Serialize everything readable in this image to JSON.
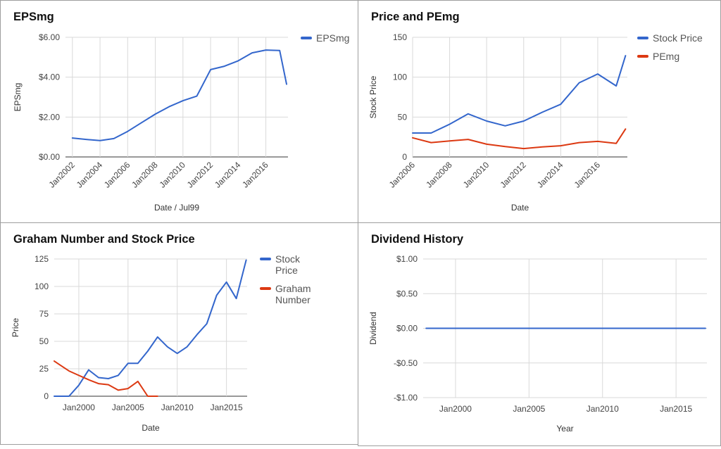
{
  "chart_data": [
    {
      "type": "line",
      "title": "EPSmg",
      "xlabel": "Date / Jul99",
      "ylabel": "EPSmg",
      "x_ticks": [
        "Jan2002",
        "Jan2004",
        "Jan2006",
        "Jan2008",
        "Jan2010",
        "Jan2012",
        "Jan2014",
        "Jan2016"
      ],
      "y_ticks": [
        "$0.00",
        "$2.00",
        "$4.00",
        "$6.00"
      ],
      "ylim": [
        0,
        6
      ],
      "legend_position": "right",
      "series": [
        {
          "name": "EPSmg",
          "color": "#3366cc",
          "x": [
            2002.0,
            2003.0,
            2004.0,
            2005.0,
            2006.0,
            2007.0,
            2008.0,
            2009.0,
            2010.0,
            2011.0,
            2012.0,
            2013.0,
            2014.0,
            2015.0,
            2016.0,
            2017.0,
            2017.5
          ],
          "y": [
            0.95,
            0.88,
            0.82,
            0.92,
            1.28,
            1.72,
            2.15,
            2.52,
            2.82,
            3.05,
            4.38,
            4.55,
            4.82,
            5.22,
            5.36,
            5.34,
            3.65
          ]
        }
      ]
    },
    {
      "type": "line",
      "title": "Price and PEmg",
      "xlabel": "Date",
      "ylabel": "Stock Price",
      "x_ticks": [
        "Jan2006",
        "Jan2008",
        "Jan2010",
        "Jan2012",
        "Jan2014",
        "Jan2016"
      ],
      "y_ticks": [
        "0",
        "50",
        "100",
        "150"
      ],
      "ylim": [
        0,
        150
      ],
      "legend_position": "right",
      "series": [
        {
          "name": "Stock Price",
          "color": "#3366cc",
          "x": [
            2006.0,
            2007.0,
            2008.0,
            2009.0,
            2010.0,
            2011.0,
            2012.0,
            2013.0,
            2014.0,
            2015.0,
            2016.0,
            2017.0,
            2017.5
          ],
          "y": [
            30,
            30,
            41,
            54,
            45,
            39,
            45,
            56,
            66,
            93,
            104,
            89,
            127
          ]
        },
        {
          "name": "PEmg",
          "color": "#dc3912",
          "x": [
            2006.0,
            2007.0,
            2008.0,
            2009.0,
            2010.0,
            2011.0,
            2012.0,
            2013.0,
            2014.0,
            2015.0,
            2016.0,
            2017.0,
            2017.5
          ],
          "y": [
            24,
            18,
            20,
            22,
            16,
            13,
            10.5,
            12.5,
            14,
            18,
            19.5,
            17,
            35
          ]
        }
      ]
    },
    {
      "type": "line",
      "title": "Graham Number and Stock Price",
      "xlabel": "Date",
      "ylabel": "Price",
      "x_ticks": [
        "Jan2000",
        "Jan2005",
        "Jan2010",
        "Jan2015"
      ],
      "y_ticks": [
        "0",
        "25",
        "50",
        "75",
        "100",
        "125"
      ],
      "ylim": [
        0,
        125
      ],
      "legend_position": "right",
      "series": [
        {
          "name": "Stock Price",
          "color": "#3366cc",
          "x": [
            1997.5,
            1998.0,
            1999.0,
            1999.5,
            2000.0,
            2001.0,
            2002.0,
            2003.0,
            2004.0,
            2005.0,
            2006.0,
            2007.0,
            2008.0,
            2009.0,
            2010.0,
            2011.0,
            2012.0,
            2013.0,
            2014.0,
            2015.0,
            2016.0,
            2017.0
          ],
          "y": [
            0,
            0,
            0,
            5,
            10,
            24,
            17,
            16,
            19,
            30,
            30,
            41,
            54,
            45,
            39,
            45,
            56,
            66,
            92,
            104,
            89,
            124
          ]
        },
        {
          "name": "Graham Number",
          "color": "#dc3912",
          "x": [
            1997.5,
            1998.0,
            1999.0,
            2000.0,
            2001.0,
            2002.0,
            2003.0,
            2004.0,
            2005.0,
            2006.0,
            2007.0,
            2008.0
          ],
          "y": [
            32,
            29,
            23,
            19,
            15,
            11.5,
            10.5,
            5.5,
            7,
            13.5,
            0,
            0
          ]
        }
      ]
    },
    {
      "type": "line",
      "title": "Dividend History",
      "xlabel": "Year",
      "ylabel": "Dividend",
      "x_ticks": [
        "Jan2000",
        "Jan2005",
        "Jan2010",
        "Jan2015"
      ],
      "y_ticks": [
        "$1.00",
        "$0.50",
        "$0.00",
        "-$0.50",
        "-$1.00"
      ],
      "ylim": [
        -1,
        1
      ],
      "series": [
        {
          "color": "#3366cc",
          "x": [
            1998.0,
            2017.0
          ],
          "y": [
            0,
            0
          ]
        }
      ]
    }
  ]
}
